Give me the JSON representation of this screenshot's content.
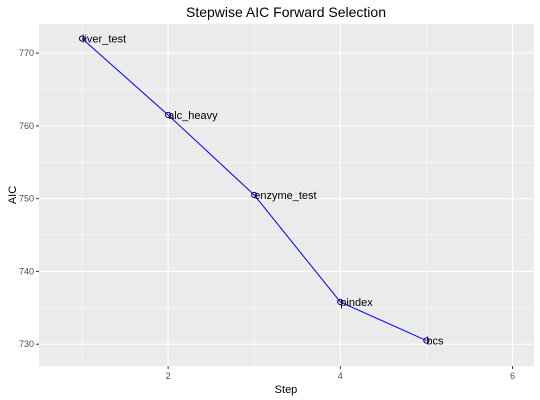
{
  "chart_data": {
    "type": "line",
    "title": "Stepwise AIC Forward Selection",
    "xlabel": "Step",
    "ylabel": "AIC",
    "x": [
      1,
      2,
      3,
      4,
      5
    ],
    "y": [
      772.0,
      761.5,
      750.5,
      735.8,
      730.5
    ],
    "point_labels": [
      "liver_test",
      "alc_heavy",
      "enzyme_test",
      "pindex",
      "bcs"
    ],
    "xlim": [
      0.5,
      6.25
    ],
    "ylim": [
      727,
      774
    ],
    "xticks": [
      2,
      4,
      6
    ],
    "yticks": [
      730,
      740,
      750,
      760,
      770
    ],
    "grid": true,
    "panel_background": "#ebebeb",
    "grid_color": "#ffffff",
    "line_color": "#0000ff",
    "point_color": "#00008b",
    "legend": "none"
  }
}
